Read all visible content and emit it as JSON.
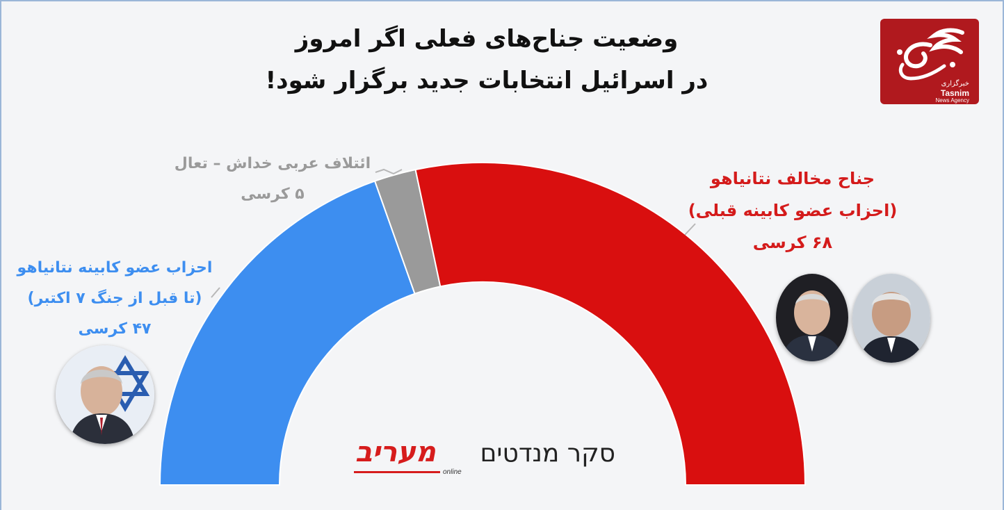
{
  "title": {
    "line1": "وضعیت جناح‌های فعلی اگر امروز",
    "line2": "در اسرائیل انتخابات جدید برگزار شود!"
  },
  "logo": {
    "text_fa": "خبرگزاری",
    "text_en1": "Tasnim",
    "text_en2": "News Agency",
    "color": "#b0191e"
  },
  "watermark": {
    "hebrew_text": "סקר מנדטים",
    "brand": "מעריב",
    "brand_sub": "online"
  },
  "chart_data": {
    "type": "pie",
    "subtype": "parliament-half-donut",
    "total_seats": 120,
    "series": [
      {
        "id": "blue",
        "label_lines": [
          "احزاب عضو کابینه نتانیاهو",
          "(تا قبل از جنگ ۷ اکتبر)",
          "۴۷ کرسی"
        ],
        "value": 47,
        "color": "#3d8ef0"
      },
      {
        "id": "gray",
        "label_lines": [
          "ائتلاف عربی خداش – تعال",
          "۵ کرسی"
        ],
        "value": 5,
        "color": "#9a9a9a"
      },
      {
        "id": "red",
        "label_lines": [
          "جناح مخالف نتانیاهو",
          "(احزاب عضو کابینه قبلی)",
          "۶۸ کرسی"
        ],
        "value": 68,
        "color": "#d90f0f"
      }
    ]
  },
  "avatars": [
    {
      "name": "left-portrait-icon"
    },
    {
      "name": "right-portrait-1-icon"
    },
    {
      "name": "right-portrait-2-icon"
    }
  ]
}
